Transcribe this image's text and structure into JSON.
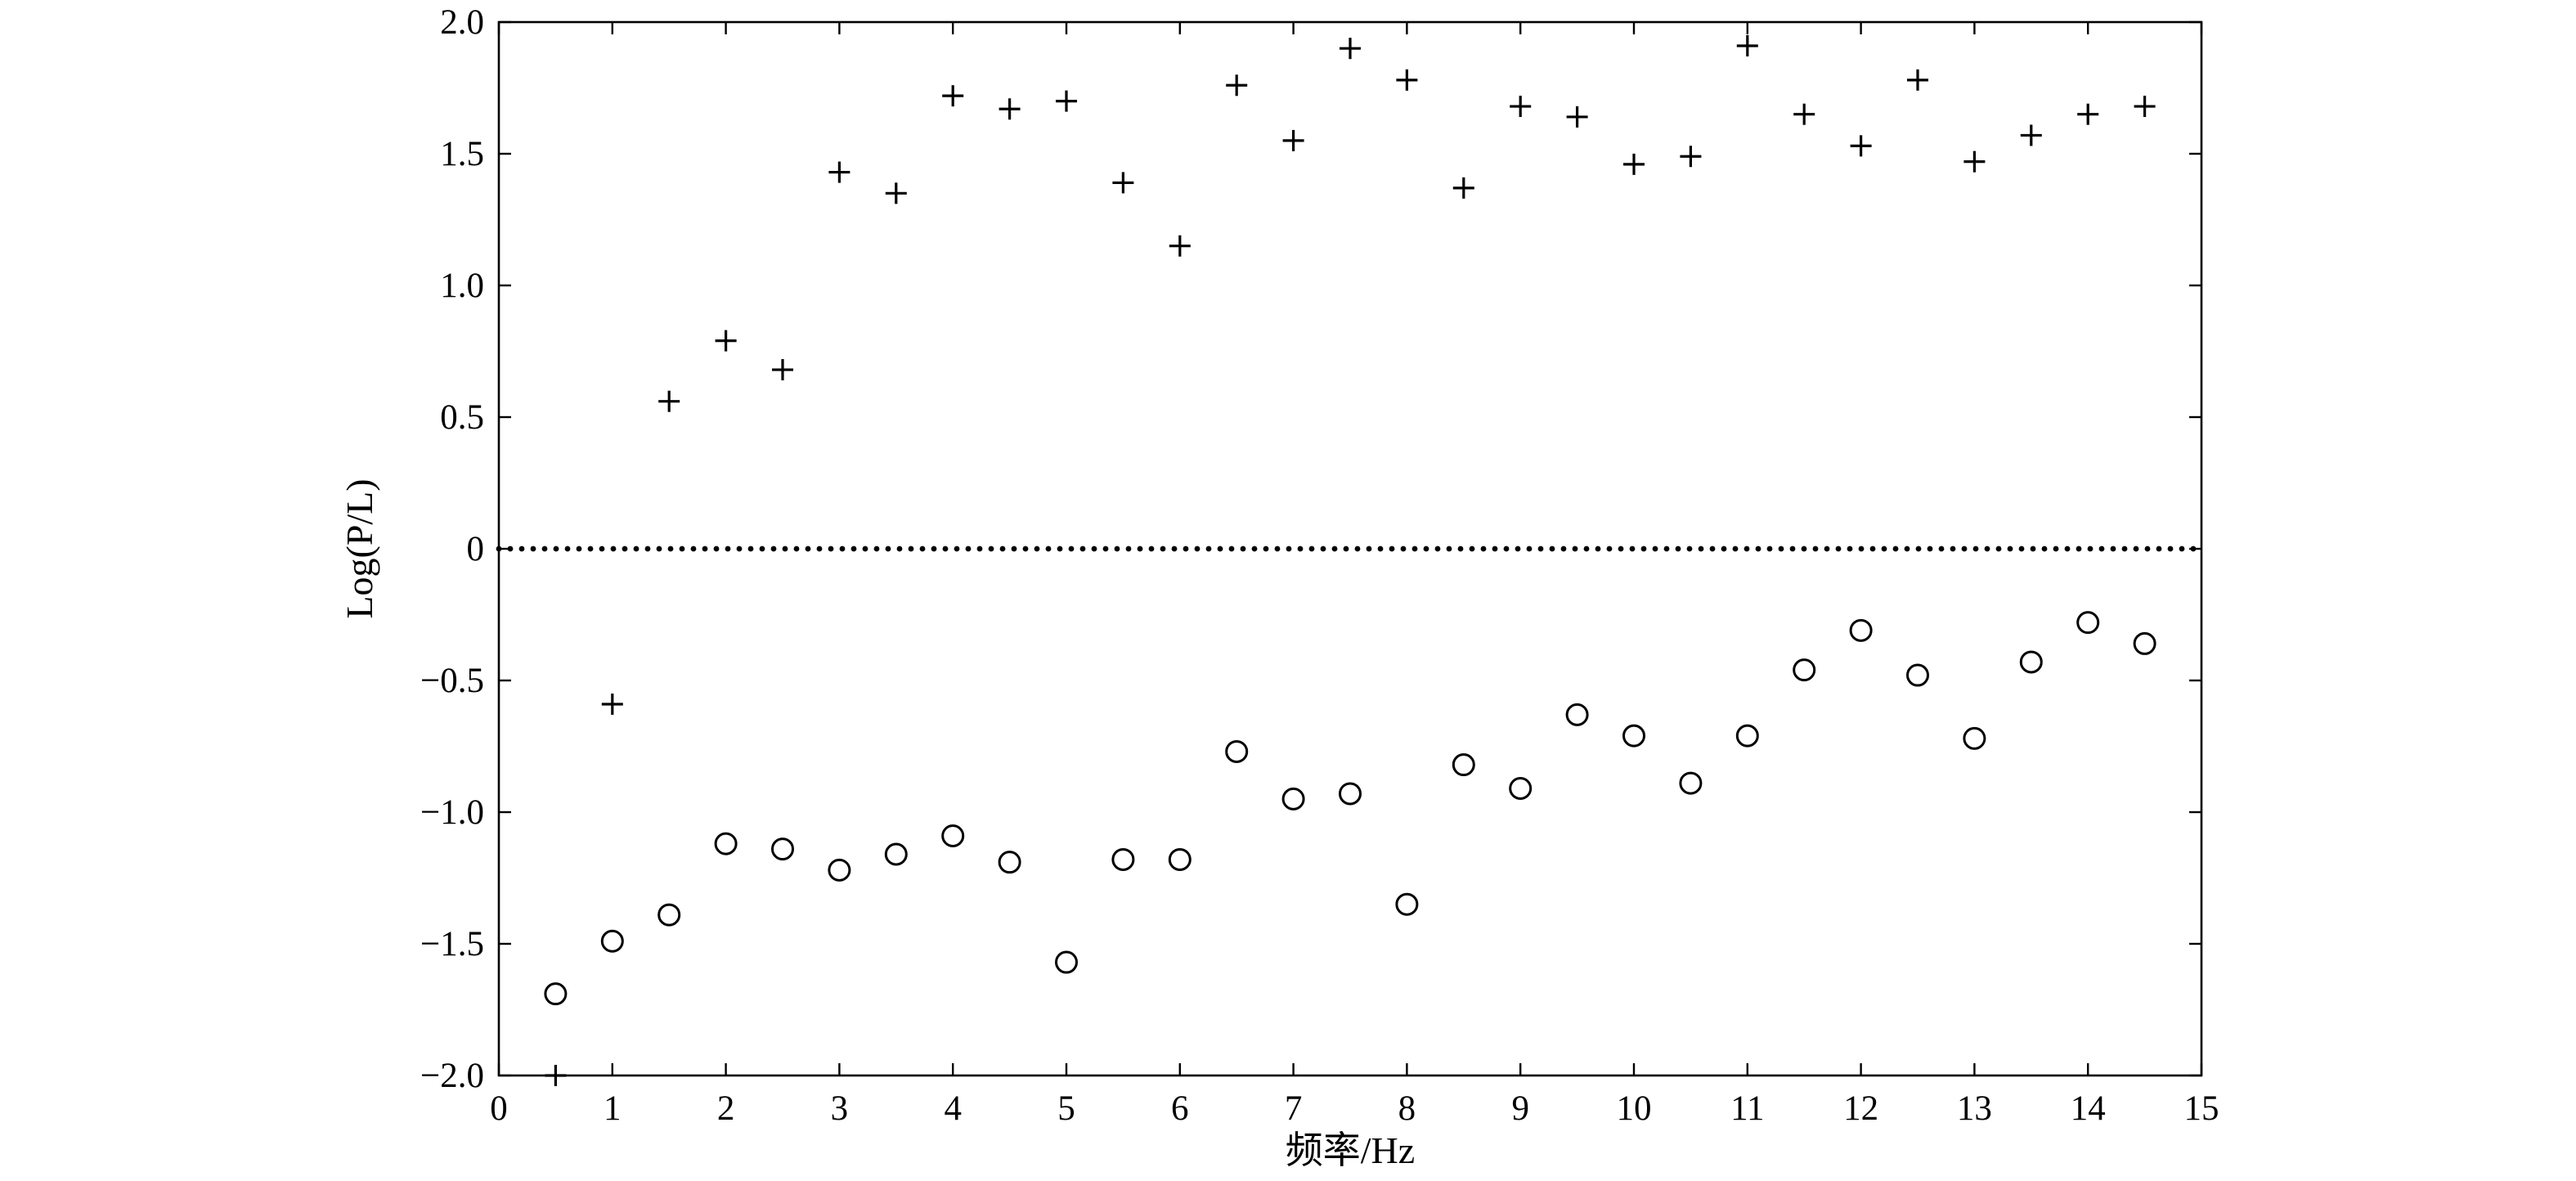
{
  "chart_data": {
    "type": "scatter",
    "title": "",
    "xlabel": "频率/Hz",
    "ylabel": "Log(P/L)",
    "xlim": [
      0,
      15
    ],
    "ylim": [
      -2.0,
      2.0
    ],
    "x_ticks": [
      "0",
      "1",
      "2",
      "3",
      "4",
      "5",
      "6",
      "7",
      "8",
      "9",
      "10",
      "11",
      "12",
      "13",
      "14",
      "15"
    ],
    "y_ticks": [
      "2.0",
      "1.5",
      "1.0",
      "0.5",
      "0",
      "−0.5",
      "−1.0",
      "−1.5",
      "−2.0"
    ],
    "grid": false,
    "reference_line": {
      "y": 0,
      "style": "dotted"
    },
    "series": [
      {
        "marker": "plus",
        "x": [
          0.5,
          1.0,
          1.5,
          2.0,
          2.5,
          3.0,
          3.5,
          4.0,
          4.5,
          5.0,
          5.5,
          6.0,
          6.5,
          7.0,
          7.5,
          8.0,
          8.5,
          9.0,
          9.5,
          10.0,
          10.5,
          11.0,
          11.5,
          12.0,
          12.5,
          13.0,
          13.5,
          14.0,
          14.5
        ],
        "y": [
          -2.0,
          -0.59,
          0.56,
          0.79,
          0.68,
          1.43,
          1.35,
          1.72,
          1.67,
          1.7,
          1.39,
          1.15,
          1.76,
          1.55,
          1.9,
          1.78,
          1.37,
          1.68,
          1.64,
          1.46,
          1.49,
          1.91,
          1.65,
          1.53,
          1.78,
          1.47,
          1.57,
          1.65,
          1.68
        ]
      },
      {
        "marker": "circle",
        "x": [
          0.5,
          1.0,
          1.5,
          2.0,
          2.5,
          3.0,
          3.5,
          4.0,
          4.5,
          5.0,
          5.5,
          6.0,
          6.5,
          7.0,
          7.5,
          8.0,
          8.5,
          9.0,
          9.5,
          10.0,
          10.5,
          11.0,
          11.5,
          12.0,
          12.5,
          13.0,
          13.5,
          14.0,
          14.5
        ],
        "y": [
          -1.69,
          -1.49,
          -1.39,
          -1.12,
          -1.14,
          -1.22,
          -1.16,
          -1.09,
          -1.19,
          -1.57,
          -1.18,
          -1.18,
          -0.77,
          -0.95,
          -0.93,
          -1.35,
          -0.82,
          -0.91,
          -0.63,
          -0.71,
          -0.89,
          -0.71,
          -0.46,
          -0.31,
          -0.48,
          -0.72,
          -0.43,
          -0.28,
          -0.36
        ]
      }
    ]
  }
}
